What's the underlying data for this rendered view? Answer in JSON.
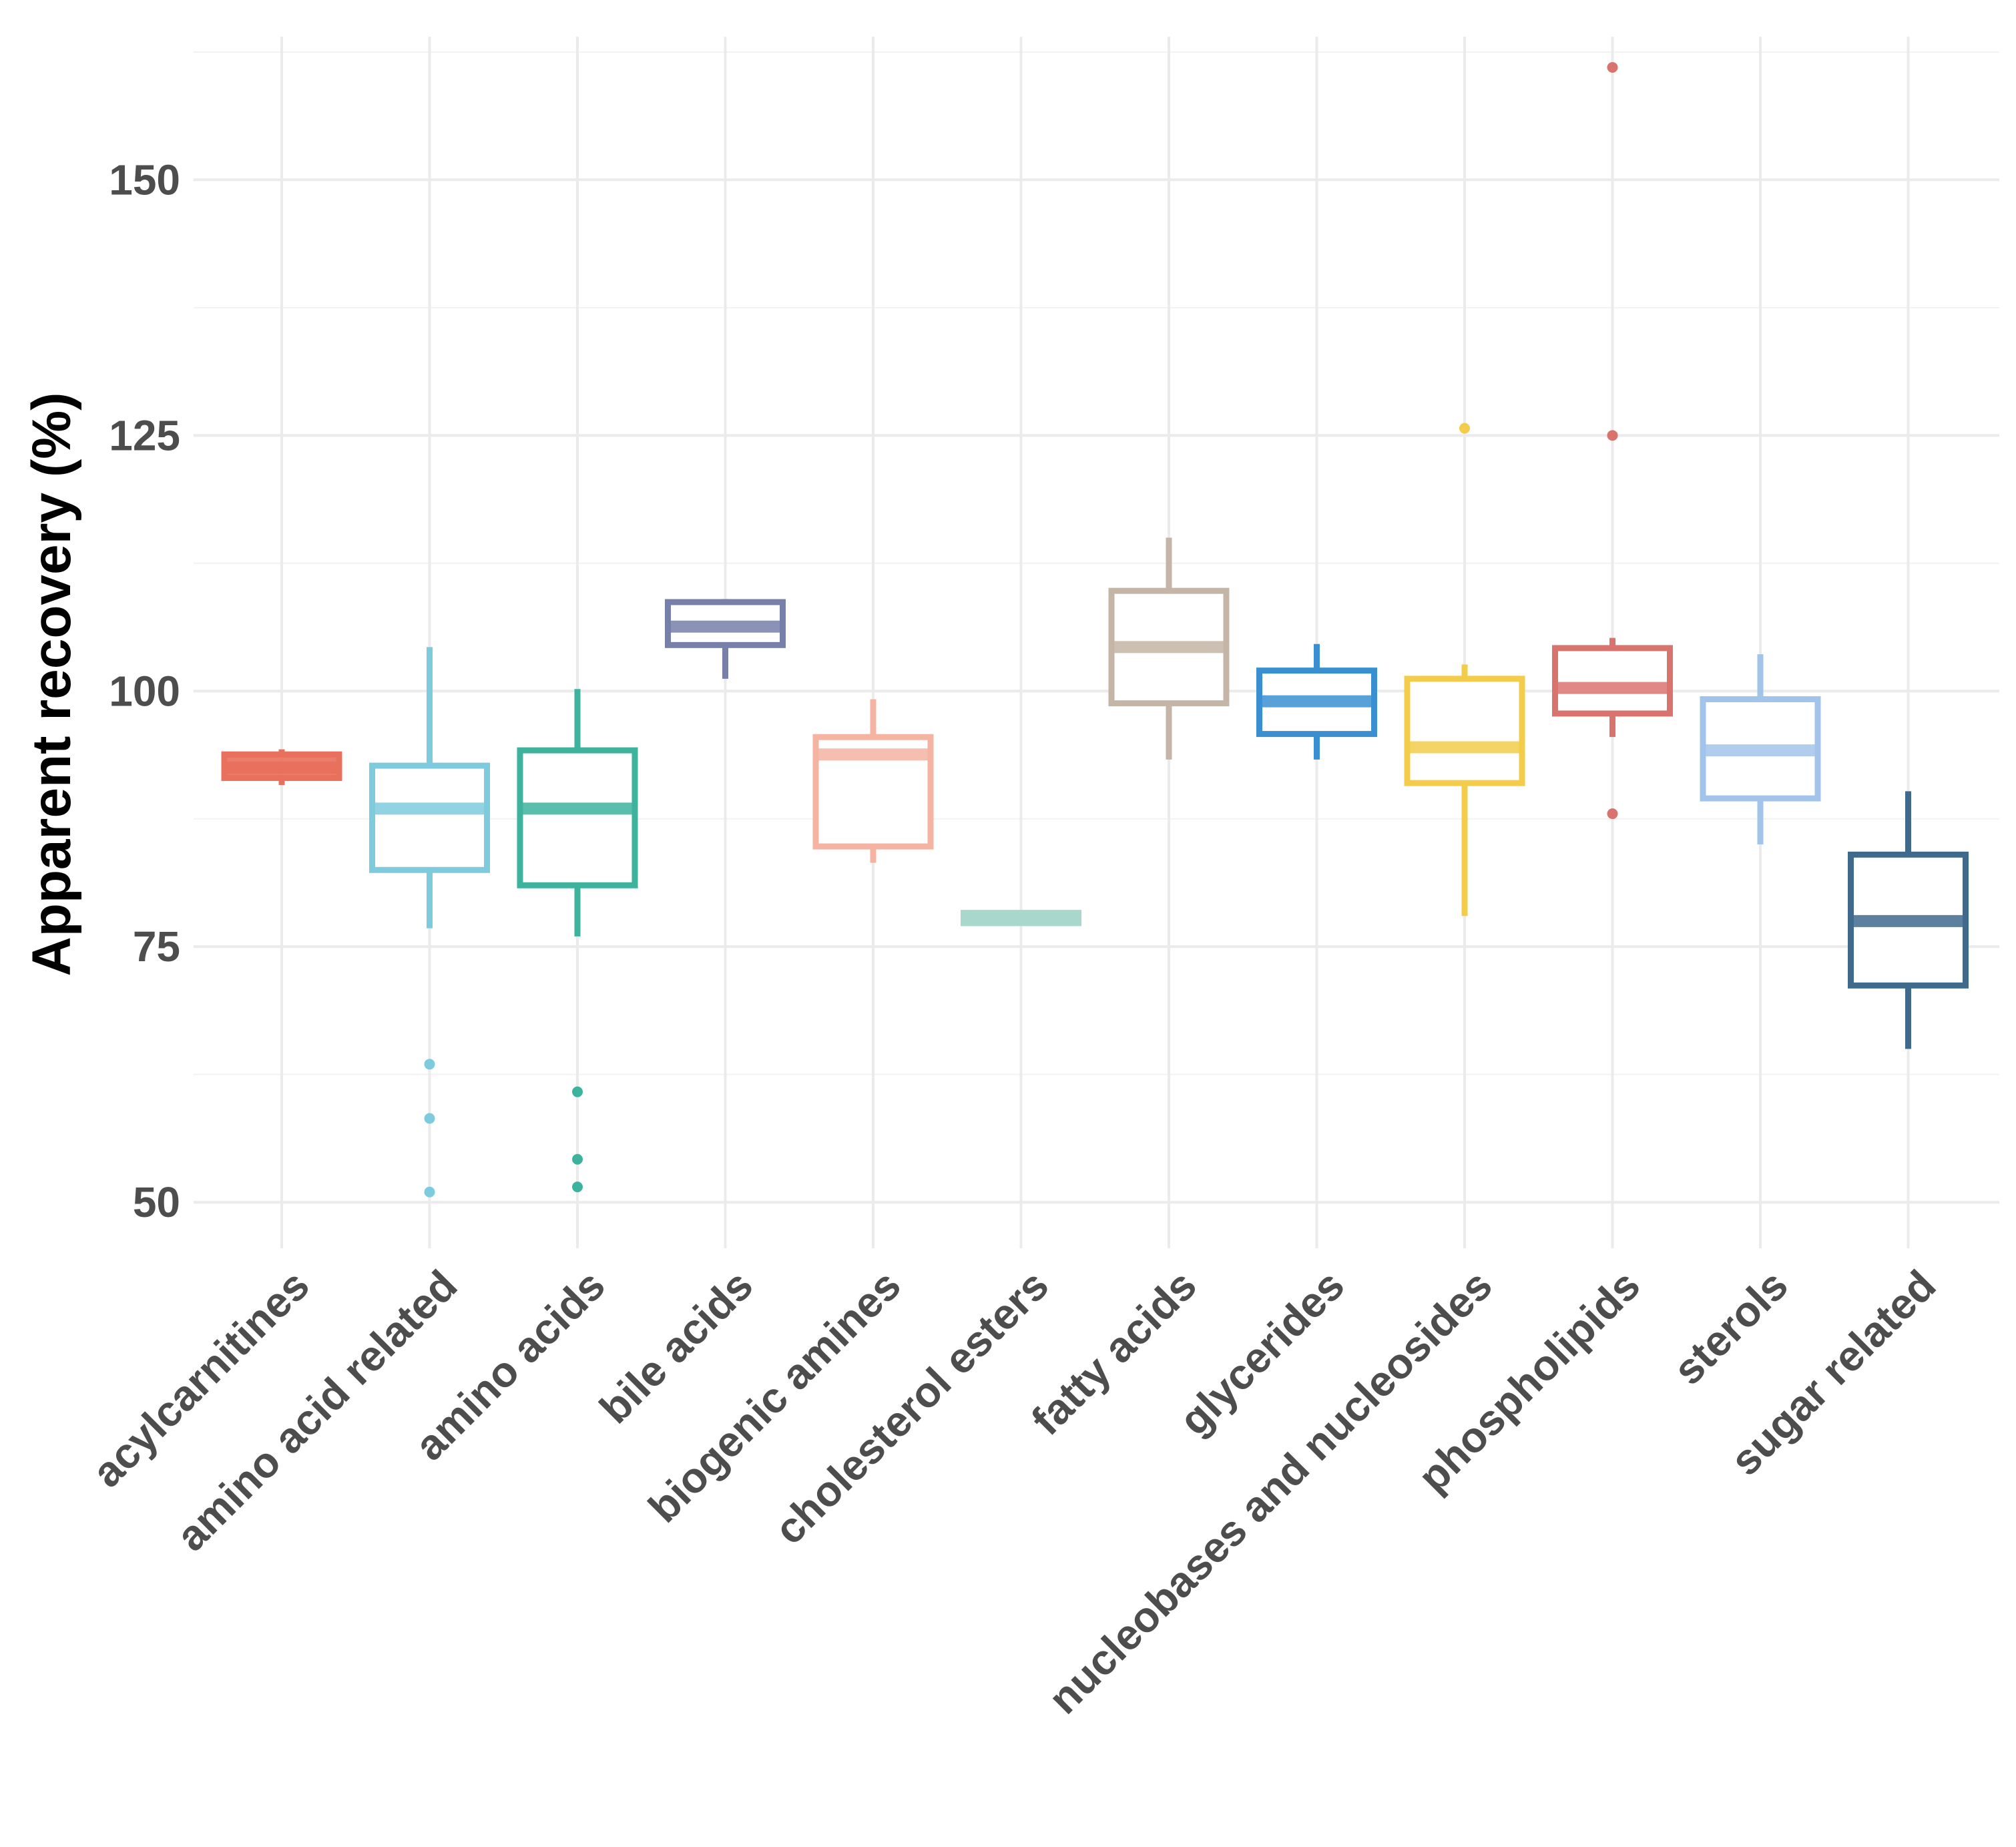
{
  "chart_data": {
    "type": "boxplot",
    "title": "",
    "xlabel": "",
    "ylabel": "Apparent recovery (%)",
    "ylim": [
      45.5,
      164
    ],
    "yticks": [
      50,
      75,
      100,
      125,
      150
    ],
    "grid": true,
    "legend": "none",
    "categories": [
      "acylcarnitines",
      "amino acid related",
      "amino acids",
      "bile acids",
      "biogenic amines",
      "cholesterol esters",
      "fatty acids",
      "glycerides",
      "nucleobases and nucleosides",
      "phospholipids",
      "sterols",
      "sugar related"
    ],
    "boxes": [
      {
        "category": "acylcarnitines",
        "color": "#E8705C",
        "min": 90.8,
        "q1": 91.5,
        "median": 92.5,
        "q3": 93.8,
        "max": 94.3,
        "outliers": [],
        "filled": true
      },
      {
        "category": "amino acid related",
        "color": "#7ECBDE",
        "min": 76.8,
        "q1": 82.5,
        "median": 88.5,
        "q3": 92.7,
        "max": 104.3,
        "outliers": [
          63.5,
          58.2,
          51.0
        ],
        "filled": false
      },
      {
        "category": "amino acids",
        "color": "#3DB39E",
        "min": 76.0,
        "q1": 81.0,
        "median": 88.5,
        "q3": 94.2,
        "max": 100.2,
        "outliers": [
          60.8,
          54.2,
          51.5
        ],
        "filled": false
      },
      {
        "category": "bile acids",
        "color": "#7680A8",
        "min": 101.2,
        "q1": 104.5,
        "median": 106.3,
        "q3": 108.7,
        "max": 109.0,
        "outliers": [],
        "filled": false
      },
      {
        "category": "biogenic amines",
        "color": "#F5B3A1",
        "min": 83.2,
        "q1": 84.8,
        "median": 93.8,
        "q3": 95.5,
        "max": 99.2,
        "outliers": [],
        "filled": false
      },
      {
        "category": "cholesterol esters",
        "color": "#A8D8CC",
        "min": 77.3,
        "q1": 77.3,
        "median": 77.8,
        "q3": 78.3,
        "max": 78.3,
        "outliers": [],
        "filled": true
      },
      {
        "category": "fatty acids",
        "color": "#C4B5A6",
        "min": 93.3,
        "q1": 98.8,
        "median": 104.3,
        "q3": 109.8,
        "max": 115.0,
        "outliers": [],
        "filled": false
      },
      {
        "category": "glycerides",
        "color": "#3A8FD1",
        "min": 93.3,
        "q1": 95.8,
        "median": 99.0,
        "q3": 102.0,
        "max": 104.6,
        "outliers": [],
        "filled": false
      },
      {
        "category": "nucleobases and nucleosides",
        "color": "#F2CC4A",
        "min": 78.0,
        "q1": 91.0,
        "median": 94.5,
        "q3": 101.2,
        "max": 102.6,
        "outliers": [
          125.7
        ],
        "filled": false
      },
      {
        "category": "phospholipids",
        "color": "#D9736E",
        "min": 95.5,
        "q1": 97.8,
        "median": 100.3,
        "q3": 104.2,
        "max": 105.2,
        "outliers": [
          161.0,
          125.0,
          88.0
        ],
        "filled": false
      },
      {
        "category": "sterols",
        "color": "#A3C4EA",
        "min": 85.0,
        "q1": 89.5,
        "median": 94.2,
        "q3": 99.2,
        "max": 103.6,
        "outliers": [],
        "filled": false
      },
      {
        "category": "sugar related",
        "color": "#3F6A8C",
        "min": 65.0,
        "q1": 71.2,
        "median": 77.5,
        "q3": 84.0,
        "max": 90.2,
        "outliers": [],
        "filled": false
      }
    ]
  }
}
